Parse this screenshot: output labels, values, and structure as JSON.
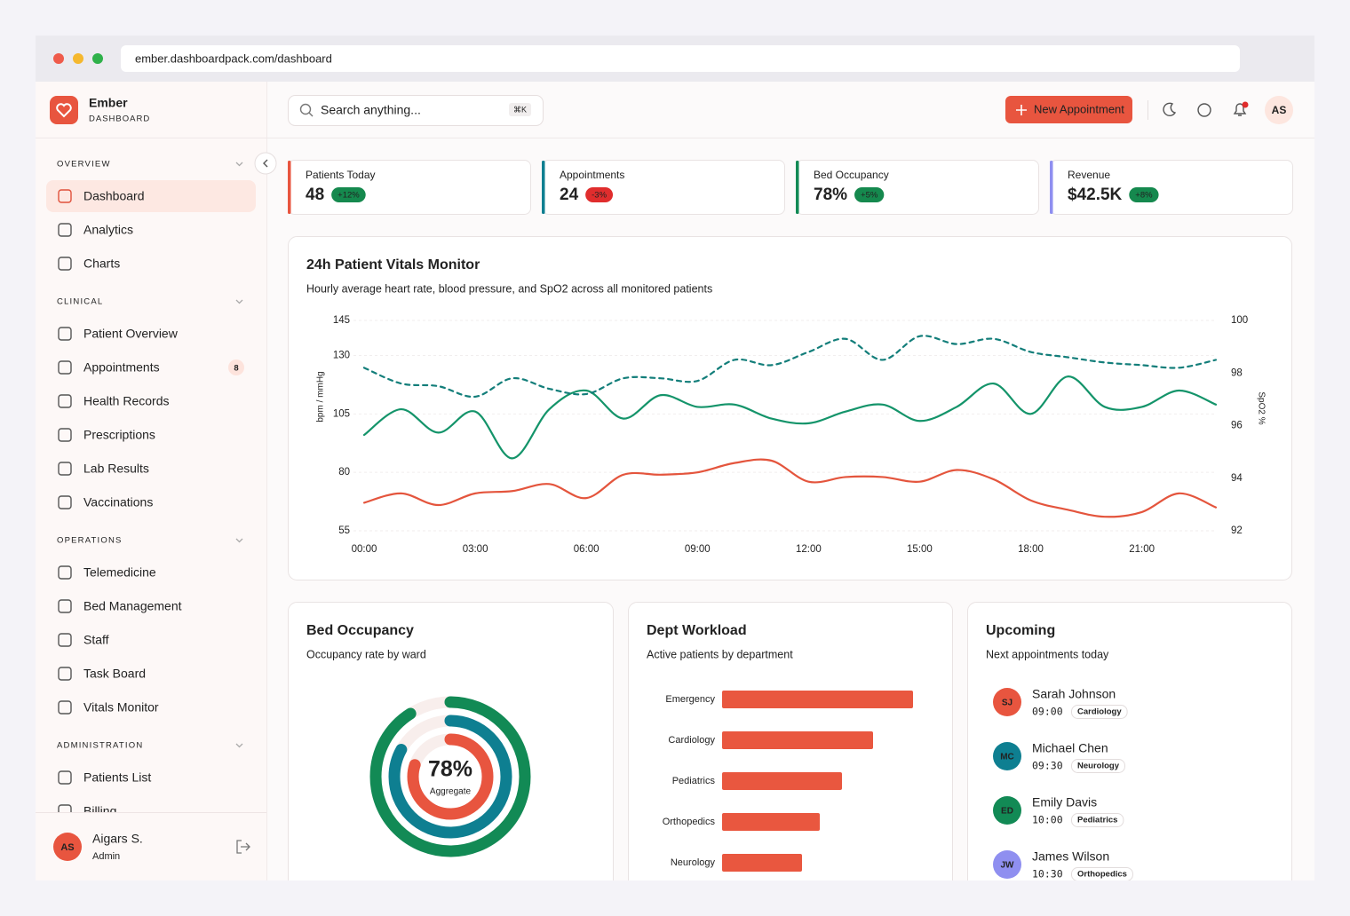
{
  "browser": {
    "url": "ember.dashboardpack.com/dashboard"
  },
  "brand": {
    "name": "Ember",
    "subtitle": "DASHBOARD"
  },
  "header": {
    "search_placeholder": "Search anything...",
    "search_shortcut": "⌘K",
    "primary_button": "New Appointment",
    "user_initials": "AS"
  },
  "sidebar": {
    "sections": [
      {
        "title": "OVERVIEW",
        "items": [
          {
            "label": "Dashboard",
            "active": true
          },
          {
            "label": "Analytics"
          },
          {
            "label": "Charts"
          }
        ]
      },
      {
        "title": "CLINICAL",
        "items": [
          {
            "label": "Patient Overview"
          },
          {
            "label": "Appointments",
            "badge": 8
          },
          {
            "label": "Health Records"
          },
          {
            "label": "Prescriptions"
          },
          {
            "label": "Lab Results"
          },
          {
            "label": "Vaccinations"
          }
        ]
      },
      {
        "title": "OPERATIONS",
        "items": [
          {
            "label": "Telemedicine"
          },
          {
            "label": "Bed Management"
          },
          {
            "label": "Staff"
          },
          {
            "label": "Task Board"
          },
          {
            "label": "Vitals Monitor"
          }
        ]
      },
      {
        "title": "ADMINISTRATION",
        "items": [
          {
            "label": "Patients List"
          },
          {
            "label": "Billing"
          }
        ]
      }
    ],
    "user": {
      "initials": "AS",
      "name": "Aigars S.",
      "role": "Admin"
    }
  },
  "kpis": [
    {
      "label": "Patients Today",
      "value": "48",
      "change": "+12%",
      "color": "#e8553f",
      "change_color": "#15894e"
    },
    {
      "label": "Appointments",
      "value": "24",
      "change": "-3%",
      "color": "#0e7f91",
      "change_color": "#e02d2d"
    },
    {
      "label": "Bed Occupancy",
      "value": "78%",
      "change": "+5%",
      "color": "#128a55",
      "change_color": "#15894e"
    },
    {
      "label": "Revenue",
      "value": "$42.5K",
      "change": "+8%",
      "color": "#8f8ff0",
      "change_color": "#15894e"
    }
  ],
  "vitals_chart": {
    "type": "line",
    "title": "24h Patient Vitals Monitor",
    "subtitle": "Hourly average heart rate, blood pressure, and SpO2 across all monitored patients",
    "y_label": "bpm / mmHg",
    "y2_label": "SpO2 %",
    "categories": [
      "00:00",
      null,
      null,
      "03:00",
      null,
      null,
      "06:00",
      null,
      null,
      "09:00",
      null,
      null,
      "12:00",
      null,
      null,
      "15:00",
      null,
      null,
      "18:00",
      null,
      null,
      "21:00",
      null,
      null
    ],
    "ylim": [
      55,
      145
    ],
    "yticks": [
      55,
      80,
      105,
      130,
      145
    ],
    "y2lim": [
      92,
      100
    ],
    "y2ticks": [
      92,
      94,
      96,
      98,
      100
    ],
    "grid": true,
    "series": [
      {
        "color": "#14946a",
        "values": [
          96,
          107,
          97,
          106,
          86,
          107,
          115,
          103,
          113,
          108,
          109,
          103,
          101,
          106,
          109,
          102,
          108,
          118,
          105,
          121,
          108,
          108,
          115,
          109
        ]
      },
      {
        "color": "#e4553d",
        "values": [
          67,
          71,
          66,
          71,
          72,
          75,
          69,
          79,
          79,
          80,
          84,
          85,
          76,
          78,
          78,
          76,
          81,
          77,
          68,
          64,
          61,
          63,
          71,
          65
        ]
      },
      {
        "color": "#137e7a",
        "dashed": true,
        "axis": "y2",
        "values": [
          98.2,
          97.6,
          97.5,
          97.1,
          97.8,
          97.4,
          97.2,
          97.8,
          97.8,
          97.7,
          98.5,
          98.3,
          98.8,
          99.3,
          98.5,
          99.4,
          99.1,
          99.3,
          98.8,
          98.6,
          98.4,
          98.3,
          98.2,
          98.5
        ]
      }
    ]
  },
  "bed_occupancy": {
    "type": "donut",
    "title": "Bed Occupancy",
    "subtitle": "Occupancy rate by ward",
    "center_value": "78%",
    "center_label": "Aggregate",
    "max": 100,
    "values": [
      91,
      83,
      80
    ],
    "colors": [
      "#128a55",
      "#0e7f91",
      "#e8553f"
    ]
  },
  "dept_workload": {
    "type": "bar",
    "orientation": "horizontal",
    "title": "Dept Workload",
    "subtitle": "Active patients by department",
    "categories": [
      "Emergency",
      "Cardiology",
      "Pediatrics",
      "Orthopedics",
      "Neurology"
    ],
    "values": [
      43,
      34,
      27,
      22,
      18
    ],
    "xlim": [
      0,
      44
    ],
    "color": "#e9573f"
  },
  "upcoming": {
    "title": "Upcoming",
    "subtitle": "Next appointments today",
    "items": [
      {
        "initials": "SJ",
        "name": "Sarah Johnson",
        "time": "09:00",
        "department": "Cardiology",
        "color": "#e8553f"
      },
      {
        "initials": "MC",
        "name": "Michael Chen",
        "time": "09:30",
        "department": "Neurology",
        "color": "#0e7f91"
      },
      {
        "initials": "ED",
        "name": "Emily Davis",
        "time": "10:00",
        "department": "Pediatrics",
        "color": "#128a55"
      },
      {
        "initials": "JW",
        "name": "James Wilson",
        "time": "10:30",
        "department": "Orthopedics",
        "color": "#8f8ff0"
      }
    ]
  }
}
